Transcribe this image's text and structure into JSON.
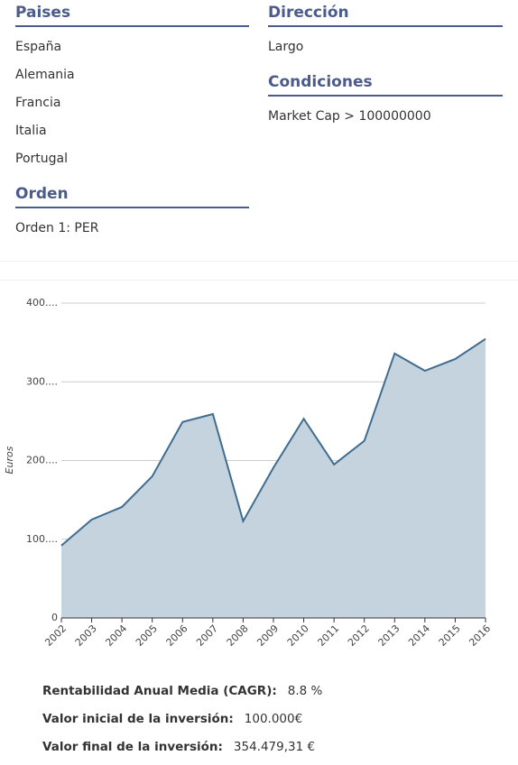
{
  "filters": {
    "countries": {
      "title": "Paises",
      "items": [
        "España",
        "Alemania",
        "Francia",
        "Italia",
        "Portugal"
      ]
    },
    "order": {
      "title": "Orden",
      "items": [
        "Orden 1: PER"
      ]
    },
    "direction": {
      "title": "Dirección",
      "items": [
        "Largo"
      ]
    },
    "conditions": {
      "title": "Condiciones",
      "items": [
        "Market Cap > 100000000"
      ]
    }
  },
  "chart_data": {
    "type": "area",
    "y_label": "Euros",
    "categories": [
      "2002",
      "2003",
      "2004",
      "2005",
      "2006",
      "2007",
      "2008",
      "2009",
      "2010",
      "2011",
      "2012",
      "2013",
      "2014",
      "2015",
      "2016"
    ],
    "values": [
      92,
      125,
      141,
      180,
      249,
      259,
      123,
      191,
      253,
      195,
      225,
      336,
      314,
      329,
      354.48
    ],
    "color": "#3f6c8f",
    "fill": "#c5d3df",
    "ylim": [
      0,
      400
    ],
    "yticks": [
      0,
      {
        "value": 100,
        "label": "100...."
      },
      {
        "value": 200,
        "label": "200...."
      },
      {
        "value": 300,
        "label": "300...."
      },
      {
        "value": 400,
        "label": "400...."
      }
    ],
    "grid": true
  },
  "summary": [
    {
      "label": "Rentabilidad Anual Media (CAGR):",
      "value": "8.8 %"
    },
    {
      "label": "Valor inicial de la inversión:",
      "value": "100.000€"
    },
    {
      "label": "Valor final de la inversión:",
      "value": "354.479,31 €"
    }
  ]
}
